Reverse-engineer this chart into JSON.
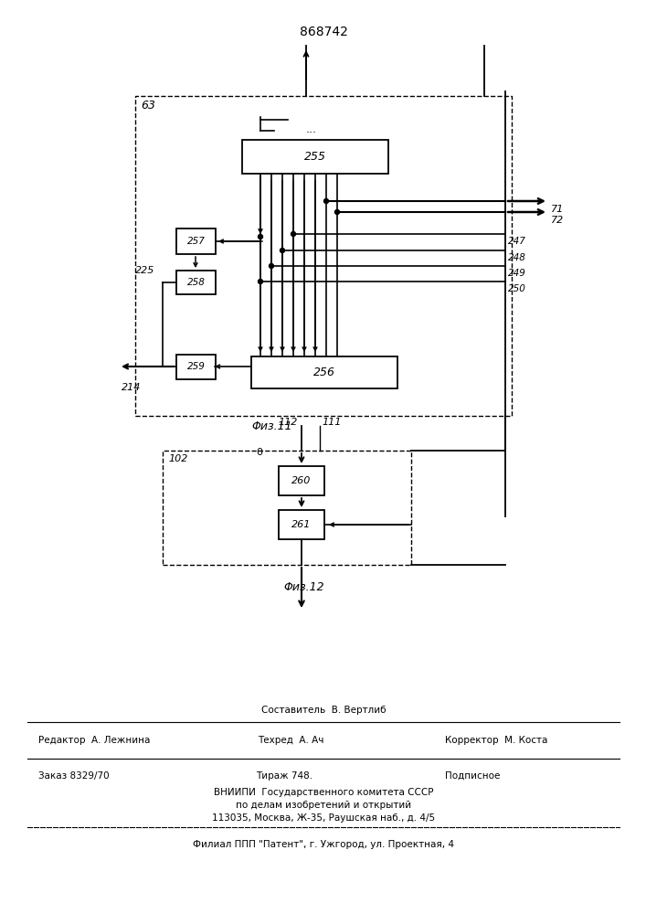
{
  "title": "868742",
  "bg_color": "#ffffff",
  "fig11_label": "Φиз.11",
  "fig12_label": "Φиз.12",
  "footer_composer": "Составитель  В. Вертлиб",
  "footer_editor": "Редактор  А. Лежнина",
  "footer_tech": "Техред  А. Ач",
  "footer_corrector": "Корректор  М. Коста",
  "footer_order": "Заказ 8329/70",
  "footer_print": "Тираж 748.",
  "footer_type": "Подписное",
  "footer_org1": "ВНИИПИ  Государственного комитета СССР",
  "footer_org2": "по делам изобретений и открытий",
  "footer_addr": "113035, Москва, Ж-35, Раушская наб., д. 4/5",
  "footer_branch": "Филиал ППП \"Патент\", г. Ужгород, ул. Проектная, 4"
}
